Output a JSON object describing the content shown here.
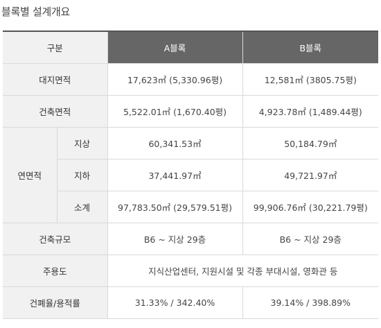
{
  "title": "블록별 설계개요",
  "table": {
    "header": {
      "category": "구분",
      "a": "A블록",
      "b": "B블록"
    },
    "site_area": {
      "label": "대지면적",
      "a": "17,623㎡ (5,330.96평)",
      "b": "12,581㎡ (3805.75평)"
    },
    "building_area": {
      "label": "건축면적",
      "a": "5,522.01㎡ (1,670.40평)",
      "b": "4,923.78㎡ (1,489.44평)"
    },
    "floor_area": {
      "label": "연면적",
      "above": {
        "label": "지상",
        "a": "60,341.53㎡",
        "b": "50,184.79㎡"
      },
      "below": {
        "label": "지하",
        "a": "37,441.97㎡",
        "b": "49,721.97㎡"
      },
      "subtotal": {
        "label": "소계",
        "a": "97,783.50㎡ (29,579.51평)",
        "b": "99,906.76㎡ (30,221.79평)"
      }
    },
    "scale": {
      "label": "건축규모",
      "a": "B6 ~ 지상 29층",
      "b": "B6 ~ 지상 29층"
    },
    "main_use": {
      "label": "주용도",
      "value": "지식산업센터, 지원시설 및 각종 부대시설, 영화관 등"
    },
    "ratio": {
      "label": "건폐율/용적률",
      "a": "31.33% / 342.40%",
      "b": "39.14% / 398.89%"
    }
  }
}
